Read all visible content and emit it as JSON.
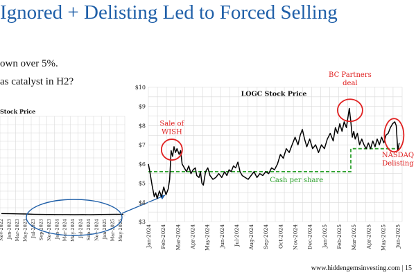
{
  "slide": {
    "title": "Ignored + Delisting Led to Forced Selling",
    "bullets": [
      "own over 5%.",
      "as catalyst in H2?"
    ],
    "footer": "www.hiddengemsinvesting.com | 15"
  },
  "colors": {
    "title": "#1f5fa8",
    "price_line": "#000000",
    "cash_line": "#2ca02c",
    "annotation": "#e02020",
    "ellipse": "#1f5fa8",
    "grid": "#d9d9d9"
  },
  "chart_data": [
    {
      "type": "line",
      "title": "LOGC Stock Price",
      "xlabel": "",
      "ylabel": "",
      "ylim": [
        3,
        10
      ],
      "ytick_labels": [
        "$3",
        "$4",
        "$5",
        "$6",
        "$7",
        "$8",
        "$9",
        "$10"
      ],
      "xtick_labels": [
        "Jan-2024",
        "Feb-2024",
        "Mar-2024",
        "Apr-2024",
        "May-2024",
        "Jun-2024",
        "Jul-2024",
        "Aug-2024",
        "Sep-2024",
        "Oct-2024",
        "Nov-2024",
        "Dec-2024",
        "Jan-2025",
        "Feb-2025",
        "Mar-2025",
        "Apr-2025",
        "May-2025",
        "Jun-2025"
      ],
      "grid": true,
      "series": [
        {
          "name": "Price",
          "points": [
            [
              0.0,
              6.0
            ],
            [
              0.1,
              5.6
            ],
            [
              0.25,
              4.9
            ],
            [
              0.4,
              4.3
            ],
            [
              0.5,
              4.5
            ],
            [
              0.6,
              4.2
            ],
            [
              0.75,
              4.6
            ],
            [
              0.9,
              4.3
            ],
            [
              1.05,
              4.8
            ],
            [
              1.2,
              4.4
            ],
            [
              1.35,
              4.7
            ],
            [
              1.45,
              5.2
            ],
            [
              1.55,
              6.7
            ],
            [
              1.65,
              6.4
            ],
            [
              1.75,
              6.9
            ],
            [
              1.85,
              6.6
            ],
            [
              1.95,
              6.8
            ],
            [
              2.1,
              6.5
            ],
            [
              2.2,
              6.7
            ],
            [
              2.3,
              6.0
            ],
            [
              2.45,
              5.8
            ],
            [
              2.6,
              5.6
            ],
            [
              2.75,
              5.9
            ],
            [
              2.9,
              5.5
            ],
            [
              3.05,
              5.7
            ],
            [
              3.2,
              5.8
            ],
            [
              3.3,
              5.4
            ],
            [
              3.45,
              5.3
            ],
            [
              3.55,
              5.6
            ],
            [
              3.65,
              5.0
            ],
            [
              3.75,
              4.9
            ],
            [
              3.9,
              5.6
            ],
            [
              4.05,
              5.8
            ],
            [
              4.2,
              5.4
            ],
            [
              4.4,
              5.2
            ],
            [
              4.6,
              5.3
            ],
            [
              4.8,
              5.5
            ],
            [
              5.0,
              5.3
            ],
            [
              5.2,
              5.6
            ],
            [
              5.35,
              5.4
            ],
            [
              5.5,
              5.7
            ],
            [
              5.65,
              5.6
            ],
            [
              5.8,
              5.9
            ],
            [
              5.95,
              5.8
            ],
            [
              6.1,
              6.1
            ],
            [
              6.25,
              5.6
            ],
            [
              6.4,
              5.4
            ],
            [
              6.6,
              5.3
            ],
            [
              6.8,
              5.2
            ],
            [
              7.0,
              5.4
            ],
            [
              7.2,
              5.6
            ],
            [
              7.4,
              5.3
            ],
            [
              7.6,
              5.5
            ],
            [
              7.8,
              5.4
            ],
            [
              8.0,
              5.6
            ],
            [
              8.2,
              5.5
            ],
            [
              8.4,
              5.8
            ],
            [
              8.6,
              5.7
            ],
            [
              8.8,
              6.0
            ],
            [
              9.0,
              6.5
            ],
            [
              9.2,
              6.3
            ],
            [
              9.4,
              6.8
            ],
            [
              9.6,
              6.6
            ],
            [
              9.8,
              7.0
            ],
            [
              10.0,
              7.4
            ],
            [
              10.2,
              7.0
            ],
            [
              10.35,
              7.5
            ],
            [
              10.5,
              7.8
            ],
            [
              10.65,
              7.3
            ],
            [
              10.8,
              6.9
            ],
            [
              11.0,
              7.3
            ],
            [
              11.2,
              6.8
            ],
            [
              11.4,
              7.0
            ],
            [
              11.6,
              6.6
            ],
            [
              11.8,
              7.0
            ],
            [
              12.0,
              6.8
            ],
            [
              12.2,
              7.3
            ],
            [
              12.4,
              7.6
            ],
            [
              12.6,
              7.2
            ],
            [
              12.75,
              7.9
            ],
            [
              12.9,
              7.6
            ],
            [
              13.05,
              8.1
            ],
            [
              13.2,
              7.7
            ],
            [
              13.35,
              8.2
            ],
            [
              13.5,
              7.9
            ],
            [
              13.6,
              8.4
            ],
            [
              13.7,
              8.9
            ],
            [
              13.8,
              8.2
            ],
            [
              13.9,
              7.4
            ],
            [
              14.0,
              7.7
            ],
            [
              14.1,
              7.3
            ],
            [
              14.25,
              7.6
            ],
            [
              14.4,
              7.0
            ],
            [
              14.55,
              7.3
            ],
            [
              14.7,
              7.0
            ],
            [
              14.85,
              6.8
            ],
            [
              15.0,
              7.1
            ],
            [
              15.15,
              6.8
            ],
            [
              15.3,
              7.2
            ],
            [
              15.45,
              6.9
            ],
            [
              15.6,
              7.3
            ],
            [
              15.75,
              7.0
            ],
            [
              15.9,
              7.4
            ],
            [
              16.05,
              7.1
            ],
            [
              16.2,
              7.5
            ],
            [
              16.35,
              7.6
            ],
            [
              16.5,
              7.9
            ],
            [
              16.65,
              8.1
            ],
            [
              16.8,
              8.2
            ],
            [
              16.9,
              8.0
            ],
            [
              17.0,
              6.7
            ],
            [
              17.1,
              7.1
            ]
          ]
        },
        {
          "name": "Cash per share",
          "points": [
            [
              0.0,
              5.6
            ],
            [
              13.8,
              5.6
            ],
            [
              13.8,
              6.8
            ],
            [
              17.1,
              6.8
            ]
          ]
        }
      ],
      "annotations": [
        {
          "text": [
            "Sale of",
            "WISH"
          ],
          "x": 1.6,
          "y": 6.75
        },
        {
          "text": [
            "BC Partners",
            "deal"
          ],
          "x": 13.75,
          "y": 8.8
        },
        {
          "text": [
            "NASDAQ",
            "Delisting"
          ],
          "x": 16.8,
          "y": 7.6
        },
        {
          "text": [
            "Cash per share"
          ],
          "x": 8.0,
          "y": 5.3
        }
      ]
    },
    {
      "type": "line",
      "title": "Stock Price",
      "grid": true,
      "xtick_labels": [
        "Nov-2022",
        "Jan-2023",
        "Mar-2023",
        "May-2023",
        "Jul-2023",
        "Sep-2023",
        "Nov-2023",
        "Jan-2024",
        "Mar-2024",
        "May-2024",
        "Jul-2024",
        "Sep-2024",
        "Nov-2024",
        "Jan-2025",
        "Mar-2025",
        "May-2025"
      ],
      "series": [
        {
          "name": "Price",
          "values": [
            0.3,
            0.28,
            0.27,
            0.25,
            0.22,
            0.2,
            0.19,
            0.18,
            0.18,
            0.17,
            0.18,
            0.17,
            0.19,
            0.2,
            0.22,
            0.22
          ]
        }
      ]
    }
  ]
}
